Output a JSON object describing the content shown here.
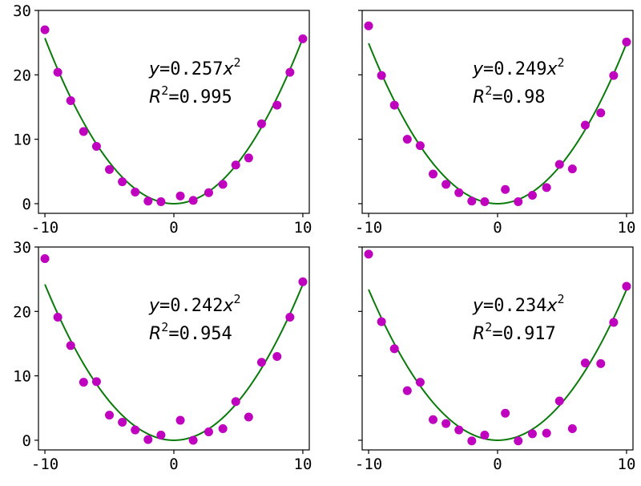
{
  "colors": {
    "points": "#bf00bf",
    "fit_line": "#0a7a0a",
    "frame": "#000000"
  },
  "chart_data": [
    {
      "type": "scatter",
      "xlim": [
        -10.5,
        10.5
      ],
      "ylim": [
        -1.5,
        30
      ],
      "xticks": [
        -10,
        0,
        10
      ],
      "xtick_labels": [
        "-10",
        "0",
        "10"
      ],
      "yticks": [
        0,
        10,
        20,
        30
      ],
      "ytick_labels": [
        "0",
        "10",
        "20",
        "30"
      ],
      "show_ytick_labels": true,
      "show_xtick_labels": true,
      "fit_coef": 0.257,
      "annotation": {
        "eq_prefix": "y=0.257x",
        "eq_exp": "2",
        "r2_prefix": "R",
        "r2_exp": "2",
        "r2_suffix": "=0.995"
      },
      "points": {
        "x": [
          -10,
          -9,
          -8,
          -7,
          -6,
          -5,
          -4,
          -3,
          -2,
          -1,
          0.5,
          1.5,
          2.7,
          3.8,
          4.8,
          5.8,
          6.8,
          8,
          9,
          10
        ],
        "y": [
          27,
          20.4,
          16,
          11.2,
          8.9,
          5.3,
          3.4,
          1.8,
          0.4,
          0.3,
          1.2,
          0.5,
          1.7,
          3,
          6,
          7.1,
          12.4,
          15.3,
          20.4,
          25.6
        ]
      }
    },
    {
      "type": "scatter",
      "xlim": [
        -10.5,
        10.5
      ],
      "ylim": [
        -1.5,
        30
      ],
      "xticks": [
        -10,
        0,
        10
      ],
      "xtick_labels": [
        "-10",
        "0",
        "10"
      ],
      "yticks": [
        0,
        10,
        20,
        30
      ],
      "ytick_labels": [
        "0",
        "10",
        "20",
        "30"
      ],
      "show_ytick_labels": false,
      "show_xtick_labels": true,
      "fit_coef": 0.249,
      "annotation": {
        "eq_prefix": "y=0.249x",
        "eq_exp": "2",
        "r2_prefix": "R",
        "r2_exp": "2",
        "r2_suffix": "=0.98"
      },
      "points": {
        "x": [
          -10,
          -9,
          -8,
          -7,
          -6,
          -5,
          -4,
          -3,
          -2,
          -1,
          0.6,
          1.6,
          2.7,
          3.8,
          4.8,
          5.8,
          6.8,
          8,
          9,
          10
        ],
        "y": [
          27.6,
          19.9,
          15.3,
          10,
          9,
          4.6,
          3,
          1.7,
          0.4,
          0.3,
          2.2,
          0.3,
          1.3,
          2.5,
          6.1,
          5.4,
          12.2,
          14.1,
          19.9,
          25.1
        ]
      }
    },
    {
      "type": "scatter",
      "xlim": [
        -10.5,
        10.5
      ],
      "ylim": [
        -1.5,
        30
      ],
      "xticks": [
        -10,
        0,
        10
      ],
      "xtick_labels": [
        "-10",
        "0",
        "10"
      ],
      "yticks": [
        0,
        10,
        20,
        30
      ],
      "ytick_labels": [
        "0",
        "10",
        "20",
        "30"
      ],
      "show_ytick_labels": true,
      "show_xtick_labels": true,
      "fit_coef": 0.242,
      "annotation": {
        "eq_prefix": "y=0.242x",
        "eq_exp": "2",
        "r2_prefix": "R",
        "r2_exp": "2",
        "r2_suffix": "=0.954"
      },
      "points": {
        "x": [
          -10,
          -9,
          -8,
          -7,
          -6,
          -5,
          -4,
          -3,
          -2,
          -1,
          0.5,
          1.5,
          2.7,
          3.8,
          4.8,
          5.8,
          6.8,
          8,
          9,
          10
        ],
        "y": [
          28.2,
          19.1,
          14.7,
          9,
          9.1,
          3.9,
          2.8,
          1.6,
          0.1,
          0.8,
          3.1,
          0,
          1.3,
          1.8,
          6,
          3.6,
          12.1,
          13,
          19.1,
          24.6
        ]
      }
    },
    {
      "type": "scatter",
      "xlim": [
        -10.5,
        10.5
      ],
      "ylim": [
        -1.5,
        30
      ],
      "xticks": [
        -10,
        0,
        10
      ],
      "xtick_labels": [
        "-10",
        "0",
        "10"
      ],
      "yticks": [
        0,
        10,
        20,
        30
      ],
      "ytick_labels": [
        "0",
        "10",
        "20",
        "30"
      ],
      "show_ytick_labels": false,
      "show_xtick_labels": true,
      "fit_coef": 0.234,
      "annotation": {
        "eq_prefix": "y=0.234x",
        "eq_exp": "2",
        "r2_prefix": "R",
        "r2_exp": "2",
        "r2_suffix": "=0.917"
      },
      "points": {
        "x": [
          -10,
          -9,
          -8,
          -7,
          -6,
          -5,
          -4,
          -3,
          -2,
          -1,
          0.6,
          1.6,
          2.7,
          3.8,
          4.8,
          5.8,
          6.8,
          8,
          9,
          10
        ],
        "y": [
          28.9,
          18.4,
          14.2,
          7.7,
          9,
          3.2,
          2.6,
          1.6,
          -0.1,
          0.8,
          4.2,
          -0.1,
          1,
          1.1,
          6.1,
          1.8,
          12,
          11.9,
          18.3,
          23.9
        ]
      }
    }
  ]
}
